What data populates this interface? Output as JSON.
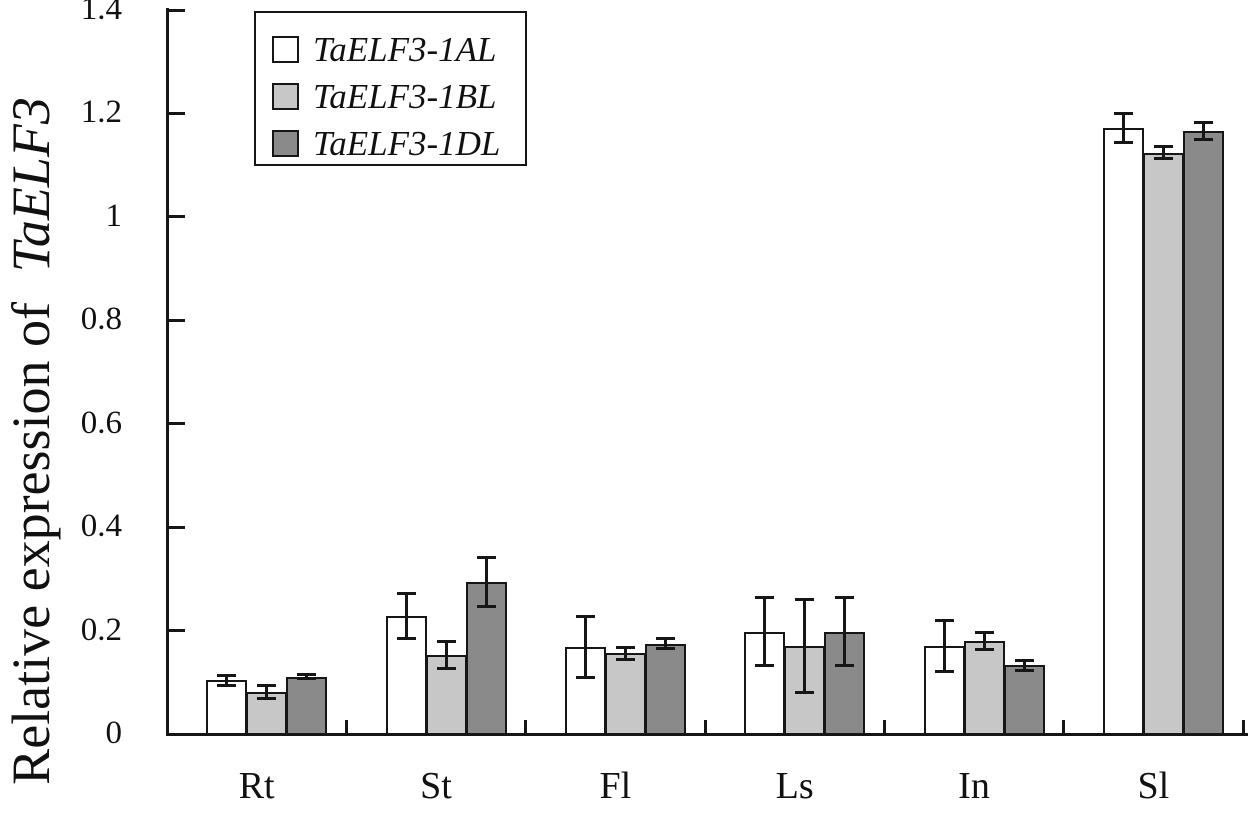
{
  "figure": {
    "background": "#ffffff",
    "ylabel_regular": "Relative expression of",
    "ylabel_italic": "TaELF3"
  },
  "chart_data": {
    "type": "bar",
    "title": "",
    "xlabel": "",
    "ylabel": "Relative expression of TaELF3",
    "categories": [
      "Rt",
      "St",
      "Fl",
      "Ls",
      "In",
      "Sl"
    ],
    "series": [
      {
        "name": "TaELF3-1AL",
        "color": "#ffffff",
        "values": [
          0.104,
          0.228,
          0.169,
          0.198,
          0.17,
          1.172
        ],
        "errors": [
          0.01,
          0.044,
          0.059,
          0.066,
          0.05,
          0.028
        ]
      },
      {
        "name": "TaELF3-1BL",
        "color": "#c7c7c7",
        "values": [
          0.081,
          0.152,
          0.156,
          0.171,
          0.18,
          1.124
        ],
        "errors": [
          0.013,
          0.026,
          0.011,
          0.09,
          0.016,
          0.012
        ]
      },
      {
        "name": "TaELF3-1DL",
        "color": "#8a8a8a",
        "values": [
          0.111,
          0.294,
          0.175,
          0.198,
          0.133,
          1.166
        ],
        "errors": [
          0.004,
          0.047,
          0.01,
          0.065,
          0.01,
          0.016
        ]
      }
    ],
    "ylim": [
      0,
      1.4
    ],
    "yticks": [
      0,
      0.2,
      0.4,
      0.6,
      0.8,
      1,
      1.2,
      1.4
    ],
    "ytick_labels": [
      "0",
      "0.2",
      "0.4",
      "0.6",
      "0.8",
      "1",
      "1.2",
      "1.4"
    ],
    "grid": false,
    "legend_position": "top-left-inside",
    "tick_direction": "in",
    "axis_color": "#161616",
    "error_bars": true
  }
}
